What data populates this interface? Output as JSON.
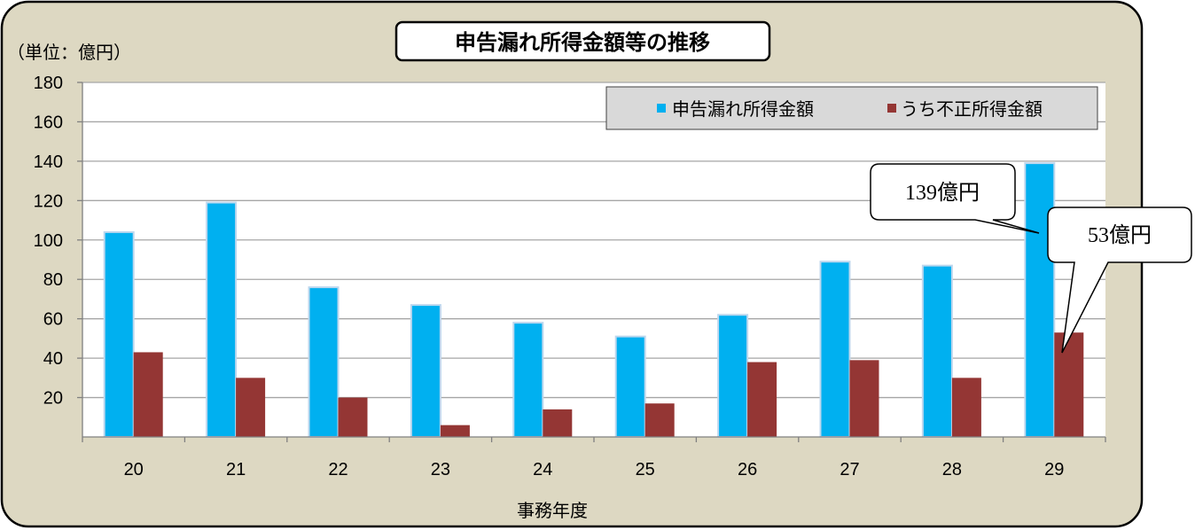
{
  "chart_data": {
    "type": "bar",
    "title": "申告漏れ所得金額等の推移",
    "unit_label": "（単位：億円）",
    "xlabel": "事務年度",
    "ylabel": "",
    "ylim": [
      0,
      180
    ],
    "yticks": [
      20,
      40,
      60,
      80,
      100,
      120,
      140,
      160,
      180
    ],
    "grid": true,
    "legend_position": "top-right",
    "categories": [
      "20",
      "21",
      "22",
      "23",
      "24",
      "25",
      "26",
      "27",
      "28",
      "29"
    ],
    "series": [
      {
        "name": "申告漏れ所得金額",
        "values": [
          104,
          119,
          76,
          67,
          58,
          51,
          62,
          89,
          87,
          139
        ]
      },
      {
        "name": "うち不正所得金額",
        "values": [
          43,
          30,
          20,
          6,
          14,
          17,
          38,
          39,
          30,
          53
        ]
      }
    ],
    "annotations": [
      {
        "text": "139億円",
        "series": 0,
        "category": "29"
      },
      {
        "text": "53億円",
        "series": 1,
        "category": "29"
      }
    ]
  },
  "colors": {
    "frame_bg": "#ddd8c2",
    "series_1": "#00b0f0",
    "series_1_border": "#bdd7ee",
    "series_2": "#943634",
    "grid": "#a6a6a6",
    "legend_bg": "#d9d9d9"
  }
}
